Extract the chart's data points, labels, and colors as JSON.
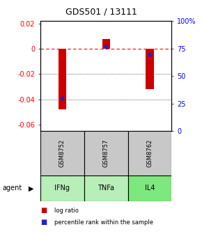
{
  "title": "GDS501 / 13111",
  "samples": [
    "GSM8752",
    "GSM8757",
    "GSM8762"
  ],
  "agents": [
    "IFNg",
    "TNFa",
    "IL4"
  ],
  "log_ratios": [
    -0.048,
    0.008,
    -0.032
  ],
  "percentiles": [
    0.3,
    0.77,
    0.7
  ],
  "ylim_left": [
    -0.065,
    0.022
  ],
  "yticks_left": [
    0.02,
    0.0,
    -0.02,
    -0.04,
    -0.06
  ],
  "ytick_labels_left": [
    "0.02",
    "0",
    "-0.02",
    "-0.04",
    "-0.06"
  ],
  "yticks_right_vals": [
    1.0,
    0.75,
    0.5,
    0.25,
    0.0
  ],
  "ytick_labels_right": [
    "100%",
    "75",
    "50",
    "25",
    "0"
  ],
  "bar_color": "#cc0000",
  "dot_color": "#2222cc",
  "agent_colors": [
    "#b8eeb8",
    "#b8eeb8",
    "#7de87d"
  ],
  "sample_bg": "#c8c8c8",
  "legend_log": "log ratio",
  "legend_pct": "percentile rank within the sample",
  "bar_width": 0.18
}
